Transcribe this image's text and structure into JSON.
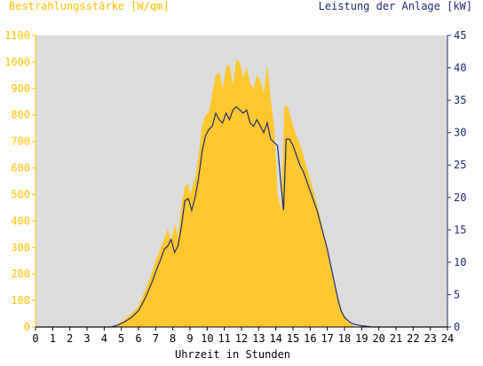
{
  "colors": {
    "plot_bg": "#dcdcdc",
    "irradiance_fill": "#ffc72c",
    "power_line": "#1e2b6e",
    "left_axis": "#ffc000",
    "right_axis": "#1e2b6e"
  },
  "chart_data": {
    "type": "area",
    "title_left": "Bestrahlungsstärke [W/qm]",
    "title_right": "Leistung der Anlage [kW]",
    "xlabel": "Uhrzeit in Stunden",
    "xlim": [
      0,
      24
    ],
    "ylim_left": [
      0,
      1100
    ],
    "ylim_right": [
      0,
      45
    ],
    "x_ticks": [
      "0",
      "1",
      "2",
      "3",
      "4",
      "5",
      "6",
      "7",
      "8",
      "9",
      "10",
      "11",
      "12",
      "13",
      "14",
      "15",
      "16",
      "17",
      "18",
      "19",
      "20",
      "21",
      "22",
      "23",
      "24"
    ],
    "y_left_ticks": [
      "0",
      "100",
      "200",
      "300",
      "400",
      "500",
      "600",
      "700",
      "800",
      "900",
      "1000",
      "1100"
    ],
    "y_right_ticks": [
      "0",
      "5",
      "10",
      "15",
      "20",
      "25",
      "30",
      "35",
      "40",
      "45"
    ],
    "grid": false,
    "series": [
      {
        "name": "Bestrahlungsstärke [W/qm]",
        "axis": "left",
        "style": "area",
        "x": [
          0,
          4.4,
          4.8,
          5.2,
          5.6,
          6.0,
          6.4,
          6.8,
          7.0,
          7.3,
          7.5,
          7.7,
          7.9,
          8.1,
          8.3,
          8.5,
          8.7,
          8.9,
          9.0,
          9.1,
          9.3,
          9.5,
          9.7,
          9.9,
          10.1,
          10.3,
          10.5,
          10.7,
          10.9,
          11.1,
          11.3,
          11.5,
          11.7,
          11.9,
          12.1,
          12.3,
          12.5,
          12.7,
          12.9,
          13.1,
          13.3,
          13.5,
          13.7,
          13.9,
          14.1,
          14.3,
          14.5,
          14.6,
          14.8,
          15.0,
          15.2,
          15.4,
          15.6,
          15.8,
          16.0,
          16.2,
          16.4,
          16.6,
          16.8,
          17.0,
          17.2,
          17.4,
          17.6,
          17.8,
          18.0,
          18.2,
          18.4,
          18.6,
          18.8,
          19.0,
          19.3,
          19.6,
          20.0,
          20.5,
          21,
          24
        ],
        "values": [
          0,
          0,
          10,
          30,
          50,
          80,
          140,
          210,
          250,
          300,
          330,
          370,
          320,
          390,
          340,
          460,
          530,
          540,
          500,
          520,
          560,
          650,
          760,
          800,
          810,
          880,
          950,
          960,
          900,
          980,
          990,
          910,
          1010,
          1000,
          940,
          980,
          920,
          900,
          950,
          930,
          880,
          990,
          860,
          760,
          500,
          440,
          830,
          840,
          810,
          760,
          720,
          690,
          650,
          600,
          560,
          510,
          460,
          410,
          350,
          290,
          220,
          160,
          110,
          70,
          40,
          20,
          10,
          0,
          0,
          0,
          0,
          0,
          0,
          0,
          0,
          0
        ]
      },
      {
        "name": "Leistung der Anlage [kW]",
        "axis": "right",
        "style": "line",
        "x": [
          0,
          4.4,
          4.8,
          5.2,
          5.6,
          6.0,
          6.4,
          6.8,
          7.0,
          7.3,
          7.5,
          7.7,
          7.9,
          8.1,
          8.3,
          8.5,
          8.7,
          8.9,
          9.0,
          9.1,
          9.3,
          9.5,
          9.7,
          9.9,
          10.1,
          10.3,
          10.5,
          10.7,
          10.9,
          11.1,
          11.3,
          11.5,
          11.7,
          11.9,
          12.1,
          12.3,
          12.5,
          12.7,
          12.9,
          13.1,
          13.3,
          13.5,
          13.7,
          13.9,
          14.1,
          14.3,
          14.45,
          14.6,
          14.8,
          15.0,
          15.2,
          15.4,
          15.6,
          15.8,
          16.0,
          16.2,
          16.4,
          16.6,
          16.8,
          17.0,
          17.2,
          17.4,
          17.6,
          17.8,
          18.0,
          18.2,
          18.4,
          18.6,
          18.8,
          19.0,
          19.3,
          19.6,
          20.0,
          20.5,
          21,
          24
        ],
        "values": [
          0,
          0,
          0.3,
          0.8,
          1.5,
          2.5,
          4.5,
          7.0,
          8.5,
          10.5,
          12.0,
          12.5,
          13.5,
          11.5,
          12.5,
          15.5,
          19.5,
          19.8,
          19.0,
          18.0,
          20.0,
          23.0,
          27.0,
          29.5,
          30.5,
          31.0,
          33.0,
          32.0,
          31.5,
          33.0,
          32.0,
          33.5,
          34.0,
          33.5,
          33.0,
          33.5,
          31.5,
          31.0,
          32.0,
          31.0,
          30.0,
          31.5,
          29.0,
          28.5,
          28.0,
          22.0,
          18.0,
          29.0,
          29.0,
          28.0,
          26.5,
          25.0,
          24.0,
          22.5,
          21.0,
          19.5,
          18.0,
          16.0,
          14.0,
          12.0,
          9.5,
          7.0,
          4.5,
          2.5,
          1.5,
          1.0,
          0.6,
          0.4,
          0.3,
          0.2,
          0.1,
          0,
          0,
          0,
          0,
          0
        ]
      }
    ]
  }
}
